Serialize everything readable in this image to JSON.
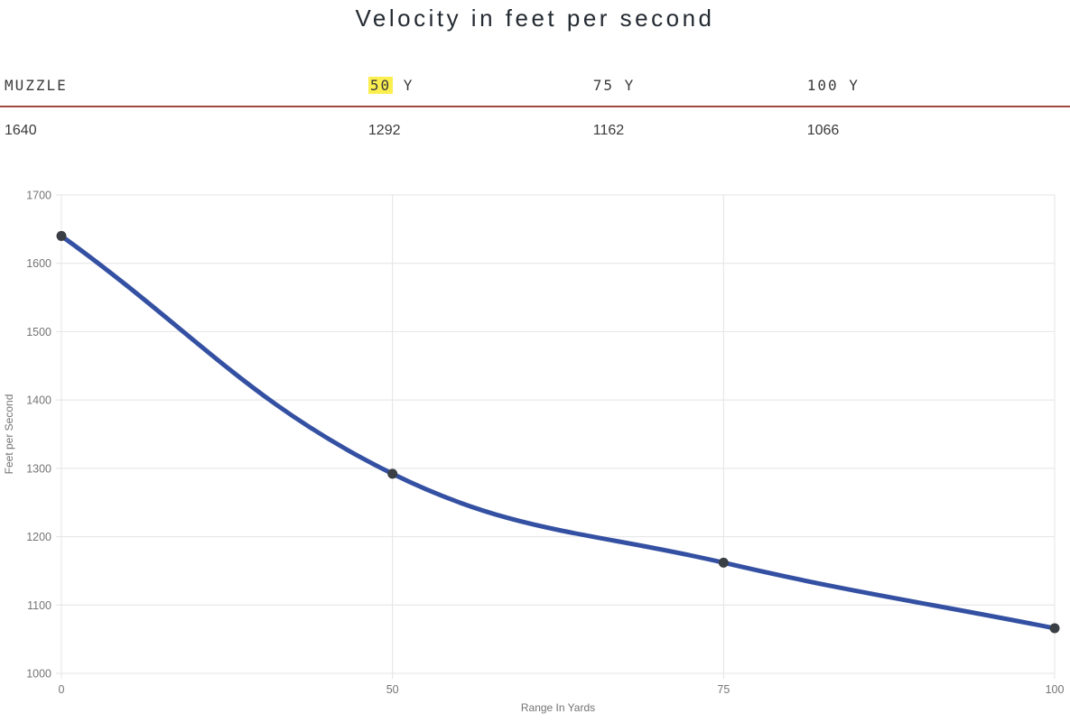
{
  "header": {
    "title": "Velocity in feet per second"
  },
  "table": {
    "highlight_color": "#fbee4f",
    "divider_color": "#9d4b42",
    "columns": [
      {
        "header": {
          "highlighted": "",
          "text": "MUZZLE"
        },
        "value": "1640"
      },
      {
        "header": {
          "highlighted": "50",
          "text": " Y"
        },
        "value": "1292"
      },
      {
        "header": {
          "highlighted": "",
          "text": "75 Y"
        },
        "value": "1162"
      },
      {
        "header": {
          "highlighted": "",
          "text": "100 Y"
        },
        "value": "1066"
      }
    ]
  },
  "chart_data": {
    "type": "line",
    "title": "Velocity in feet per second",
    "x_categories": [
      "0",
      "50",
      "75",
      "100"
    ],
    "values": [
      1640,
      1292,
      1162,
      1066
    ],
    "xlabel": "Range In Yards",
    "ylabel": "Feet per Second",
    "ylim": [
      1000,
      1700
    ],
    "y_ticks": [
      1000,
      1100,
      1200,
      1300,
      1400,
      1500,
      1600,
      1700
    ],
    "x_axis_type": "category",
    "grid": true,
    "legend": false,
    "line_tension": 0.4,
    "colors": {
      "line": "#3450a2",
      "point": "#3a3f45",
      "grid": "#e4e4e4",
      "tick_text": "#747474"
    }
  }
}
